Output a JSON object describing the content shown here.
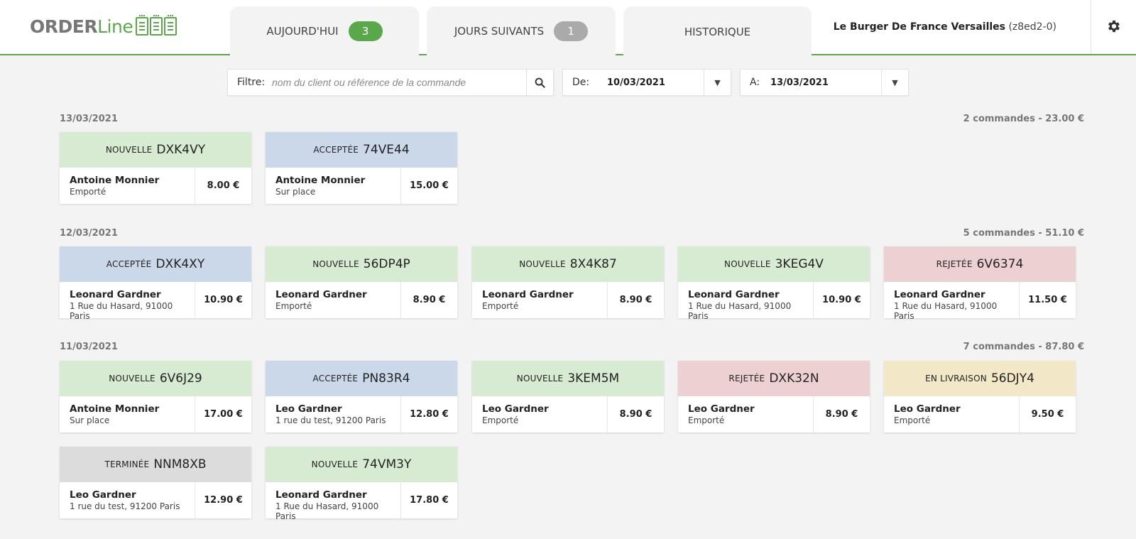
{
  "header": {
    "logo": {
      "part1": "ORDER",
      "part2": "Line"
    },
    "tabs": [
      {
        "label": "AUJOURD'HUI",
        "count": "3",
        "badge_color": "#5aa84a"
      },
      {
        "label": "JOURS SUIVANTS",
        "count": "1",
        "badge_color": "#aaaaaa"
      },
      {
        "label": "HISTORIQUE"
      }
    ],
    "restaurant_name": "Le Burger De France Versailles",
    "restaurant_code": "(z8ed2-0)",
    "settings_icon": "gear-icon"
  },
  "filter": {
    "label": "Filtre:",
    "placeholder": "nom du client ou référence de la commande",
    "value": "",
    "search_icon": "search-icon"
  },
  "date_from": {
    "label": "De:",
    "value": "10/03/2021"
  },
  "date_to": {
    "label": "A:",
    "value": "13/03/2021"
  },
  "days": [
    {
      "date": "13/03/2021",
      "summary": "2 commandes - 23.00 €",
      "orders": [
        {
          "status": "Nouvelle",
          "ref": "DXK4VY",
          "customer": "Antoine Monnier",
          "mode": "Emporté",
          "price": "8.00 €"
        },
        {
          "status": "Acceptée",
          "ref": "74VE44",
          "customer": "Antoine Monnier",
          "mode": "Sur place",
          "price": "15.00 €"
        }
      ]
    },
    {
      "date": "12/03/2021",
      "summary": "5 commandes - 51.10 €",
      "orders": [
        {
          "status": "Acceptée",
          "ref": "DXK4XY",
          "customer": "Leonard Gardner",
          "mode": "1 Rue du Hasard, 91000 Paris",
          "price": "10.90 €"
        },
        {
          "status": "Nouvelle",
          "ref": "56DP4P",
          "customer": "Leonard Gardner",
          "mode": "Emporté",
          "price": "8.90 €"
        },
        {
          "status": "Nouvelle",
          "ref": "8X4K87",
          "customer": "Leonard Gardner",
          "mode": "Emporté",
          "price": "8.90 €"
        },
        {
          "status": "Nouvelle",
          "ref": "3KEG4V",
          "customer": "Leonard Gardner",
          "mode": "1 Rue du Hasard, 91000 Paris",
          "price": "10.90 €"
        },
        {
          "status": "Rejetée",
          "ref": "6V6374",
          "customer": "Leonard Gardner",
          "mode": "1 Rue du Hasard, 91000 Paris",
          "price": "11.50 €"
        }
      ]
    },
    {
      "date": "11/03/2021",
      "summary": "7 commandes - 87.80 €",
      "orders": [
        {
          "status": "Nouvelle",
          "ref": "6V6J29",
          "customer": "Antoine Monnier",
          "mode": "Sur place",
          "price": "17.00 €"
        },
        {
          "status": "Acceptée",
          "ref": "PN83R4",
          "customer": "Leo Gardner",
          "mode": "1 rue du test, 91200 Paris",
          "price": "12.80 €"
        },
        {
          "status": "Nouvelle",
          "ref": "3KEM5M",
          "customer": "Leo Gardner",
          "mode": "Emporté",
          "price": "8.90 €"
        },
        {
          "status": "Rejetée",
          "ref": "DXK32N",
          "customer": "Leo Gardner",
          "mode": "Emporté",
          "price": "8.90 €"
        },
        {
          "status": "En livraison",
          "ref": "56DJY4",
          "customer": "Leo Gardner",
          "mode": "Emporté",
          "price": "9.50 €"
        },
        {
          "status": "Terminée",
          "ref": "NNM8XB",
          "customer": "Leo Gardner",
          "mode": "1 rue du test, 91200 Paris",
          "price": "12.90 €"
        },
        {
          "status": "Nouvelle",
          "ref": "74VM3Y",
          "customer": "Leonard Gardner",
          "mode": "1 Rue du Hasard, 91000 Paris",
          "price": "17.80 €"
        }
      ]
    }
  ],
  "status_colors": {
    "Nouvelle": "#d7ead2",
    "Acceptée": "#cbd8ea",
    "Rejetée": "#ecd0d2",
    "En livraison": "#f2e8c7",
    "Terminée": "#dcdcdc"
  }
}
